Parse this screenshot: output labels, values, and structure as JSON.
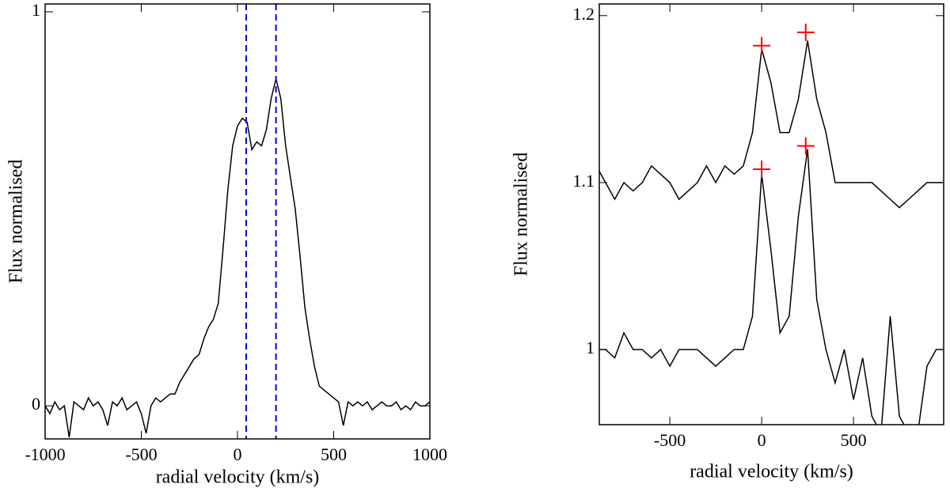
{
  "chart_data": [
    {
      "type": "line",
      "xlabel": "radial velocity (km/s)",
      "ylabel": "Flux normalised",
      "xlim": [
        -1000,
        1000
      ],
      "ylim": [
        -0.084,
        1.02
      ],
      "xticks": [
        -1000,
        -500,
        0,
        500,
        1000
      ],
      "yticks": [
        0,
        1
      ],
      "x": [
        -1000,
        -975,
        -950,
        -925,
        -900,
        -875,
        -850,
        -825,
        -800,
        -775,
        -750,
        -725,
        -700,
        -675,
        -650,
        -625,
        -600,
        -575,
        -550,
        -525,
        -500,
        -475,
        -450,
        -425,
        -400,
        -375,
        -350,
        -325,
        -300,
        -275,
        -250,
        -225,
        -200,
        -175,
        -150,
        -125,
        -100,
        -75,
        -50,
        -25,
        0,
        25,
        50,
        75,
        100,
        125,
        150,
        175,
        200,
        225,
        250,
        275,
        300,
        325,
        350,
        375,
        400,
        425,
        450,
        475,
        500,
        525,
        550,
        575,
        600,
        625,
        650,
        675,
        700,
        725,
        750,
        775,
        800,
        825,
        850,
        875,
        900,
        925,
        950,
        975,
        1000
      ],
      "series": [
        {
          "color": "#000000",
          "values": [
            0.0,
            -0.02,
            0.01,
            -0.01,
            0.0,
            -0.08,
            0.01,
            0.0,
            -0.01,
            0.02,
            0.0,
            0.01,
            -0.01,
            -0.05,
            0.01,
            0.0,
            0.02,
            -0.01,
            0.0,
            0.01,
            -0.02,
            -0.07,
            0.0,
            0.02,
            0.01,
            0.02,
            0.03,
            0.03,
            0.06,
            0.08,
            0.1,
            0.12,
            0.13,
            0.17,
            0.2,
            0.22,
            0.26,
            0.4,
            0.55,
            0.66,
            0.71,
            0.73,
            0.72,
            0.65,
            0.67,
            0.66,
            0.7,
            0.78,
            0.83,
            0.78,
            0.66,
            0.58,
            0.5,
            0.38,
            0.25,
            0.17,
            0.1,
            0.05,
            0.04,
            0.03,
            0.02,
            0.01,
            -0.05,
            0.01,
            0.0,
            0.01,
            0.0,
            0.01,
            -0.01,
            0.0,
            0.01,
            0.0,
            0.0,
            0.01,
            -0.01,
            0.0,
            -0.01,
            0.01,
            0.0,
            0.0,
            0.01
          ]
        }
      ],
      "vlines": {
        "color": "#0000dd",
        "x": [
          45,
          200
        ]
      }
    },
    {
      "type": "line",
      "xlabel": "radial velocity (km/s)",
      "ylabel": "Flux normalised",
      "xlim": [
        -884,
        991
      ],
      "ylim": [
        0.955,
        1.207
      ],
      "xticks": [
        -500,
        0,
        500
      ],
      "yticks": [
        1,
        1.1,
        1.2
      ],
      "x": [
        -900,
        -850,
        -800,
        -750,
        -700,
        -650,
        -600,
        -550,
        -500,
        -450,
        -400,
        -350,
        -300,
        -250,
        -200,
        -150,
        -100,
        -50,
        0,
        50,
        100,
        150,
        200,
        250,
        300,
        350,
        400,
        450,
        500,
        550,
        600,
        650,
        700,
        750,
        800,
        850,
        900,
        950,
        1000
      ],
      "series": [
        {
          "color": "#000000",
          "values": [
            1.11,
            1.1,
            1.09,
            1.1,
            1.095,
            1.1,
            1.11,
            1.105,
            1.1,
            1.09,
            1.095,
            1.1,
            1.11,
            1.1,
            1.11,
            1.105,
            1.11,
            1.13,
            1.18,
            1.16,
            1.13,
            1.13,
            1.15,
            1.185,
            1.15,
            1.13,
            1.1,
            1.1,
            1.1,
            1.1,
            1.1,
            1.095,
            1.09,
            1.085,
            1.09,
            1.095,
            1.1,
            1.1,
            1.1
          ]
        },
        {
          "color": "#000000",
          "values": [
            1.0,
            1.0,
            0.995,
            1.01,
            1.0,
            1.0,
            0.995,
            1.0,
            0.99,
            1.0,
            1.0,
            1.0,
            0.995,
            0.99,
            0.995,
            1.0,
            1.0,
            1.02,
            1.105,
            1.06,
            1.01,
            1.02,
            1.08,
            1.12,
            1.03,
            1.0,
            0.98,
            1.0,
            0.97,
            0.995,
            0.96,
            0.95,
            1.02,
            0.96,
            0.95,
            0.95,
            0.99,
            1.0,
            1.0
          ]
        }
      ],
      "markers": {
        "color": "#ff0000",
        "x": [
          0,
          240,
          0,
          240
        ],
        "values": [
          1.182,
          1.19,
          1.108,
          1.122
        ]
      }
    }
  ]
}
